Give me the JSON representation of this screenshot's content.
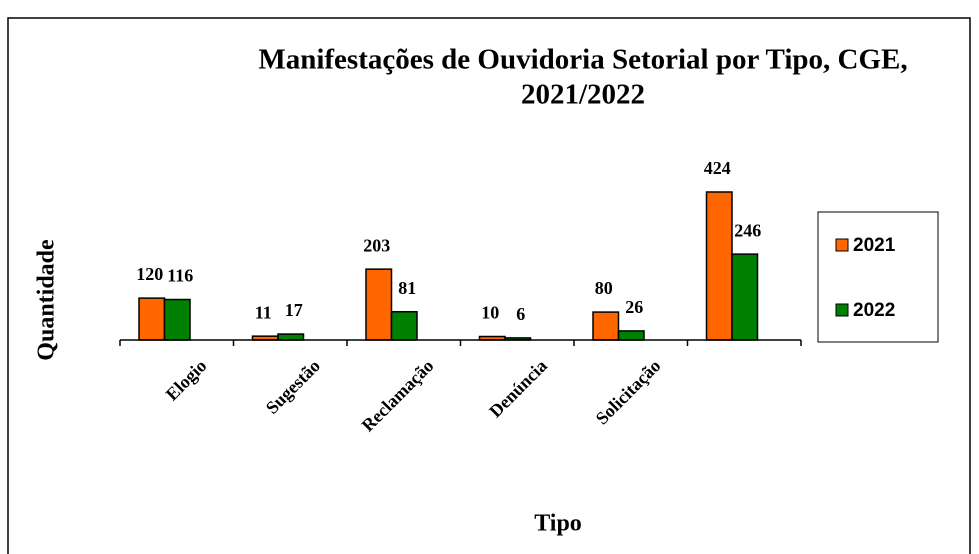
{
  "chart_data": {
    "type": "bar",
    "title": [
      "Manifestações de Ouvidoria Setorial por Tipo, CGE,",
      "2021/2022"
    ],
    "x_label": "Tipo",
    "y_label": "Quantidade",
    "categories": [
      "Elogio",
      "Sugestão",
      "Reclamação",
      "Denúncia",
      "Solicitação",
      null
    ],
    "series": [
      {
        "name": "2021",
        "color": "#ff6600",
        "values": [
          120,
          11,
          203,
          10,
          80,
          424
        ]
      },
      {
        "name": "2022",
        "color": "#008000",
        "values": [
          116,
          17,
          81,
          6,
          26,
          246
        ]
      }
    ],
    "ylim": [
      0,
      500
    ],
    "grid": false,
    "legend": "right"
  }
}
